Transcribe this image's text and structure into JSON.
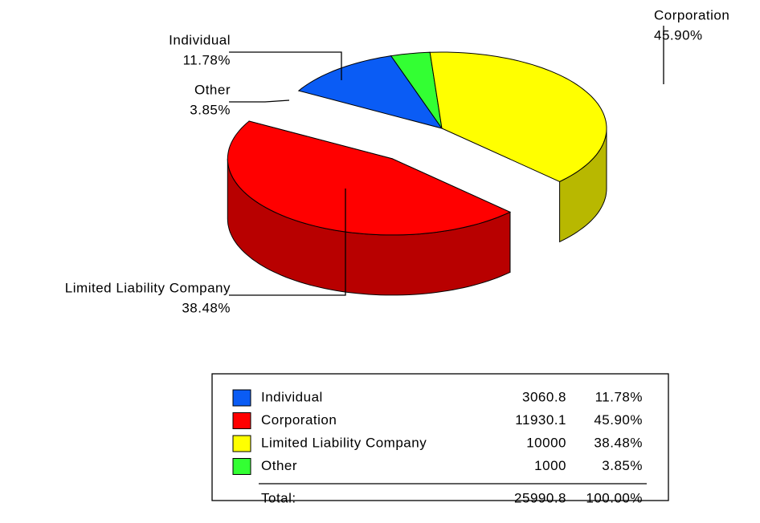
{
  "chart_data": {
    "type": "pie3d",
    "categories": [
      "Individual",
      "Corporation",
      "Limited Liability Company",
      "Other"
    ],
    "values": [
      3060.8,
      11930.1,
      10000,
      1000
    ],
    "percent_labels": [
      "11.78%",
      "45.90%",
      "38.48%",
      "3.85%"
    ],
    "colors": [
      "#0a5cf5",
      "#ff0000",
      "#ffff00",
      "#33ff33"
    ],
    "explode": [
      0,
      0.5,
      0,
      0
    ],
    "total_label": "Total:",
    "total": 25990.8,
    "total_percent_label": "100.00%"
  }
}
